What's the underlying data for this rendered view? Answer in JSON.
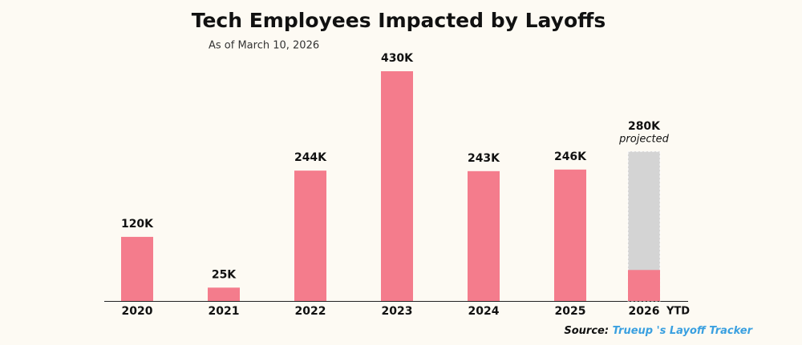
{
  "chart_data": {
    "type": "bar",
    "title": "Tech Employees Impacted by Layoffs",
    "subtitle": "As of March 10, 2026",
    "categories": [
      "2020",
      "2021",
      "2022",
      "2023",
      "2024",
      "2025",
      "2026"
    ],
    "category_suffix": "YTD",
    "values": [
      120000,
      25000,
      244000,
      430000,
      243000,
      246000,
      58000
    ],
    "value_labels": [
      "120K",
      "25K",
      "244K",
      "430K",
      "243K",
      "246K",
      null
    ],
    "color": "#f47c8c",
    "projected": {
      "value": 280000,
      "value_label": "280K",
      "note": "projected",
      "color": "#d4d4d4"
    },
    "source": {
      "label": "Source:",
      "text": "Trueup 's Layoff Tracker"
    }
  }
}
